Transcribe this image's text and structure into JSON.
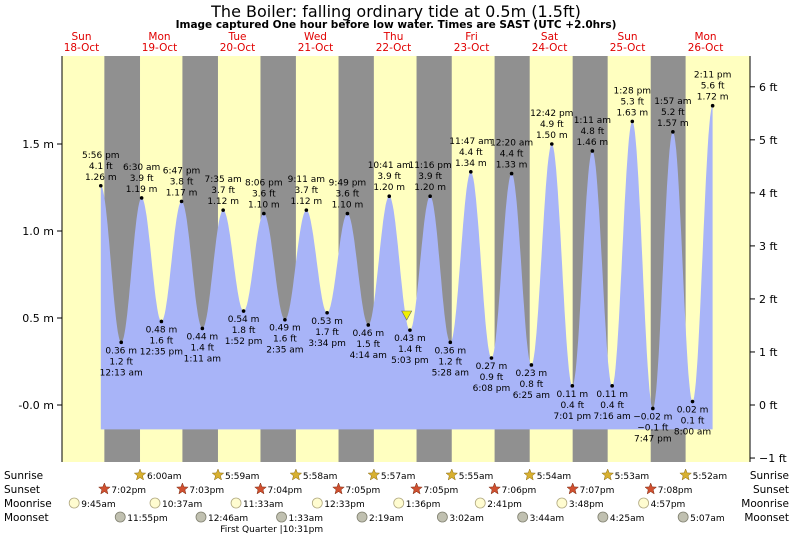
{
  "header": {
    "title": "The Boiler: falling  ordinary tide at 0.5m (1.5ft)",
    "subtitle": "Image captured One hour before low water. Times are SAST (UTC +2.0hrs)"
  },
  "days": [
    {
      "day": "Sun",
      "date": "18-Oct"
    },
    {
      "day": "Mon",
      "date": "19-Oct"
    },
    {
      "day": "Tue",
      "date": "20-Oct"
    },
    {
      "day": "Wed",
      "date": "21-Oct"
    },
    {
      "day": "Thu",
      "date": "22-Oct"
    },
    {
      "day": "Fri",
      "date": "23-Oct"
    },
    {
      "day": "Sat",
      "date": "24-Oct"
    },
    {
      "day": "Sun",
      "date": "25-Oct"
    },
    {
      "day": "Mon",
      "date": "26-Oct"
    }
  ],
  "colors": {
    "day": "#ffffc0",
    "night": "#909090",
    "water": "#a8b4f8",
    "sunrise_star": "#d8b030",
    "sunset_star": "#d05030",
    "moonrise": "#fffcd0",
    "moonset": "#c0c0b0",
    "marker": "#f0f000"
  },
  "chart_data": {
    "type": "area",
    "title": "The Boiler: falling  ordinary tide at 0.5m (1.5ft)",
    "ylabel_left": "m",
    "ylabel_right": "ft",
    "ylim": [
      -0.15,
      1.95
    ],
    "y_ticks_m": [
      "-0.0 m",
      "0.5 m",
      "1.0 m",
      "1.5 m"
    ],
    "y_ticks_ft": [
      "−1 ft",
      "0 ft",
      "1 ft",
      "2 ft",
      "3 ft",
      "4 ft",
      "5 ft",
      "6 ft"
    ],
    "grid": false,
    "tides": [
      {
        "date": "18-Oct",
        "time": "5:56 pm",
        "type": "high",
        "m": 1.26,
        "label_m": "1.26 m",
        "label_ft": "4.1 ft"
      },
      {
        "date": "19-Oct",
        "time": "12:13 am",
        "type": "low",
        "m": 0.36,
        "label_m": "0.36 m",
        "label_ft": "1.2 ft"
      },
      {
        "date": "19-Oct",
        "time": "6:30 am",
        "type": "high",
        "m": 1.19,
        "label_m": "1.19 m",
        "label_ft": "3.9 ft"
      },
      {
        "date": "19-Oct",
        "time": "12:35 pm",
        "type": "low",
        "m": 0.48,
        "label_m": "0.48 m",
        "label_ft": "1.6 ft"
      },
      {
        "date": "19-Oct",
        "time": "6:47 pm",
        "type": "high",
        "m": 1.17,
        "label_m": "1.17 m",
        "label_ft": "3.8 ft"
      },
      {
        "date": "20-Oct",
        "time": "1:11 am",
        "type": "low",
        "m": 0.44,
        "label_m": "0.44 m",
        "label_ft": "1.4 ft"
      },
      {
        "date": "20-Oct",
        "time": "7:35 am",
        "type": "high",
        "m": 1.12,
        "label_m": "1.12 m",
        "label_ft": "3.7 ft"
      },
      {
        "date": "20-Oct",
        "time": "1:52 pm",
        "type": "low",
        "m": 0.54,
        "label_m": "0.54 m",
        "label_ft": "1.8 ft"
      },
      {
        "date": "20-Oct",
        "time": "8:06 pm",
        "type": "high",
        "m": 1.1,
        "label_m": "1.10 m",
        "label_ft": "3.6 ft"
      },
      {
        "date": "21-Oct",
        "time": "2:35 am",
        "type": "low",
        "m": 0.49,
        "label_m": "0.49 m",
        "label_ft": "1.6 ft"
      },
      {
        "date": "21-Oct",
        "time": "9:11 am",
        "type": "high",
        "m": 1.12,
        "label_m": "1.12 m",
        "label_ft": "3.7 ft"
      },
      {
        "date": "21-Oct",
        "time": "3:34 pm",
        "type": "low",
        "m": 0.53,
        "label_m": "0.53 m",
        "label_ft": "1.7 ft"
      },
      {
        "date": "21-Oct",
        "time": "9:49 pm",
        "type": "high",
        "m": 1.1,
        "label_m": "1.10 m",
        "label_ft": "3.6 ft"
      },
      {
        "date": "22-Oct",
        "time": "4:14 am",
        "type": "low",
        "m": 0.46,
        "label_m": "0.46 m",
        "label_ft": "1.5 ft"
      },
      {
        "date": "22-Oct",
        "time": "10:41 am",
        "type": "high",
        "m": 1.2,
        "label_m": "1.20 m",
        "label_ft": "3.9 ft"
      },
      {
        "date": "22-Oct",
        "time": "5:03 pm",
        "type": "low",
        "m": 0.43,
        "label_m": "0.43 m",
        "label_ft": "1.4 ft"
      },
      {
        "date": "22-Oct",
        "time": "11:16 pm",
        "type": "high",
        "m": 1.2,
        "label_m": "1.20 m",
        "label_ft": "3.9 ft"
      },
      {
        "date": "23-Oct",
        "time": "5:28 am",
        "type": "low",
        "m": 0.36,
        "label_m": "0.36 m",
        "label_ft": "1.2 ft"
      },
      {
        "date": "23-Oct",
        "time": "11:47 am",
        "type": "high",
        "m": 1.34,
        "label_m": "1.34 m",
        "label_ft": "4.4 ft"
      },
      {
        "date": "23-Oct",
        "time": "6:08 pm",
        "type": "low",
        "m": 0.27,
        "label_m": "0.27 m",
        "label_ft": "0.9 ft"
      },
      {
        "date": "24-Oct",
        "time": "12:20 am",
        "type": "high",
        "m": 1.33,
        "label_m": "1.33 m",
        "label_ft": "4.4 ft"
      },
      {
        "date": "24-Oct",
        "time": "6:25 am",
        "type": "low",
        "m": 0.23,
        "label_m": "0.23 m",
        "label_ft": "0.8 ft"
      },
      {
        "date": "24-Oct",
        "time": "12:42 pm",
        "type": "high",
        "m": 1.5,
        "label_m": "1.50 m",
        "label_ft": "4.9 ft"
      },
      {
        "date": "24-Oct",
        "time": "7:01 pm",
        "type": "low",
        "m": 0.11,
        "label_m": "0.11 m",
        "label_ft": "0.4 ft"
      },
      {
        "date": "25-Oct",
        "time": "1:11 am",
        "type": "high",
        "m": 1.46,
        "label_m": "1.46 m",
        "label_ft": "4.8 ft"
      },
      {
        "date": "25-Oct",
        "time": "7:16 am",
        "type": "low",
        "m": 0.11,
        "label_m": "0.11 m",
        "label_ft": "0.4 ft"
      },
      {
        "date": "25-Oct",
        "time": "1:28 pm",
        "type": "high",
        "m": 1.63,
        "label_m": "1.63 m",
        "label_ft": "5.3 ft"
      },
      {
        "date": "25-Oct",
        "time": "7:47 pm",
        "type": "low",
        "m": -0.02,
        "label_m": "−0.02 m",
        "label_ft": "−0.1 ft"
      },
      {
        "date": "26-Oct",
        "time": "1:57 am",
        "type": "high",
        "m": 1.57,
        "label_m": "1.57 m",
        "label_ft": "5.2 ft"
      },
      {
        "date": "26-Oct",
        "time": "8:00 am",
        "type": "low",
        "m": 0.02,
        "label_m": "0.02 m",
        "label_ft": "0.1 ft"
      },
      {
        "date": "26-Oct",
        "time": "2:11 pm",
        "type": "high",
        "m": 1.72,
        "label_m": "1.72 m",
        "label_ft": "5.6 ft"
      }
    ],
    "current_level": {
      "date": "22-Oct",
      "time": "4:03 pm",
      "m": 0.5,
      "label": "0.5m (1.5ft)"
    },
    "sun": [
      {
        "date": "18-Oct",
        "sunset": "7:02pm"
      },
      {
        "date": "19-Oct",
        "sunrise": "6:00am",
        "sunset": "7:03pm"
      },
      {
        "date": "20-Oct",
        "sunrise": "5:59am",
        "sunset": "7:04pm"
      },
      {
        "date": "21-Oct",
        "sunrise": "5:58am",
        "sunset": "7:05pm"
      },
      {
        "date": "22-Oct",
        "sunrise": "5:57am",
        "sunset": "7:05pm"
      },
      {
        "date": "23-Oct",
        "sunrise": "5:55am",
        "sunset": "7:06pm"
      },
      {
        "date": "24-Oct",
        "sunrise": "5:54am",
        "sunset": "7:07pm"
      },
      {
        "date": "25-Oct",
        "sunrise": "5:53am",
        "sunset": "7:08pm"
      },
      {
        "date": "26-Oct",
        "sunrise": "5:52am"
      }
    ],
    "moonrise": [
      {
        "date": "18-Oct",
        "time": "9:45am"
      },
      {
        "date": "19-Oct",
        "time": "10:37am"
      },
      {
        "date": "20-Oct",
        "time": "11:33am"
      },
      {
        "date": "21-Oct",
        "time": "12:33pm"
      },
      {
        "date": "22-Oct",
        "time": "1:36pm"
      },
      {
        "date": "23-Oct",
        "time": "2:41pm"
      },
      {
        "date": "24-Oct",
        "time": "3:48pm"
      },
      {
        "date": "25-Oct",
        "time": "4:57pm"
      }
    ],
    "moonset": [
      {
        "date": "18-Oct",
        "time": "11:55pm"
      },
      {
        "date": "20-Oct",
        "time": "12:46am"
      },
      {
        "date": "21-Oct",
        "time": "1:33am"
      },
      {
        "date": "22-Oct",
        "time": "2:19am"
      },
      {
        "date": "23-Oct",
        "time": "3:02am"
      },
      {
        "date": "24-Oct",
        "time": "3:44am"
      },
      {
        "date": "25-Oct",
        "time": "4:25am"
      },
      {
        "date": "26-Oct",
        "time": "5:07am"
      }
    ],
    "moon_phase": {
      "date": "20-Oct",
      "label": "First Quarter",
      "time": "10:31pm"
    }
  },
  "rows": {
    "sunrise": "Sunrise",
    "sunset": "Sunset",
    "moonrise": "Moonrise",
    "moonset": "Moonset"
  }
}
